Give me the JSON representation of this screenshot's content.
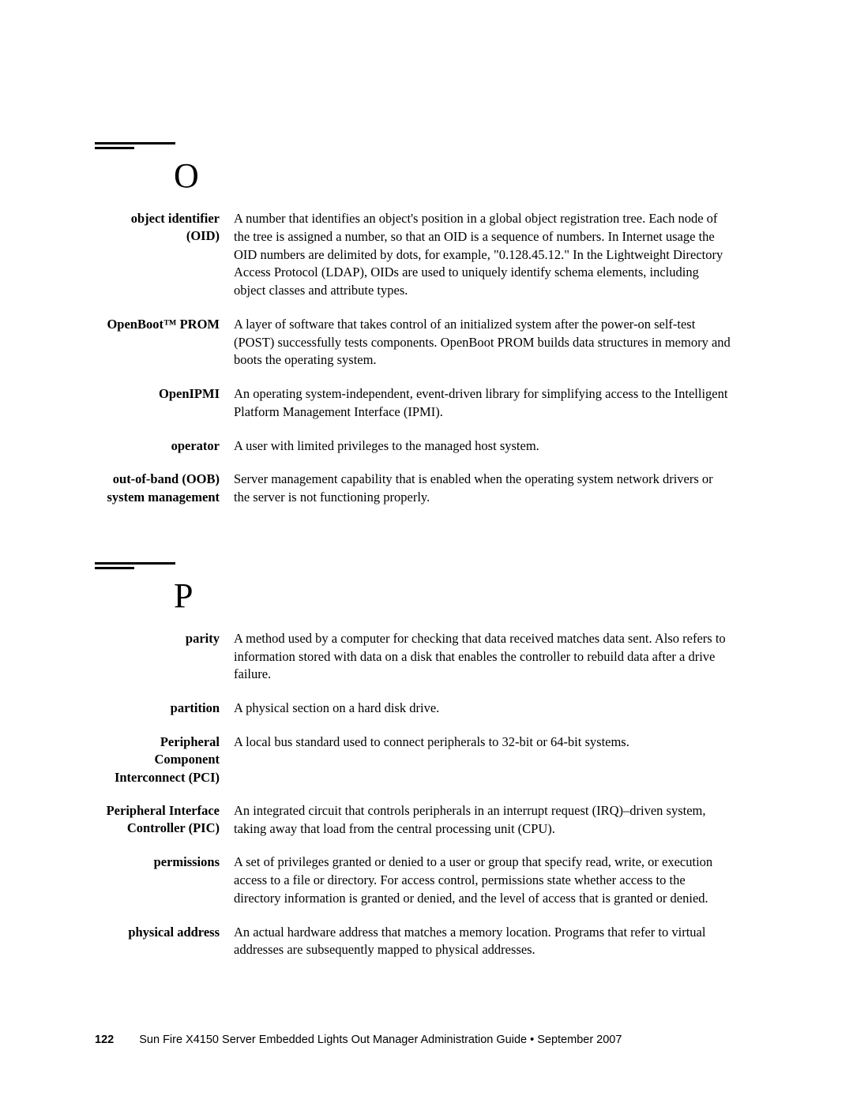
{
  "sections": {
    "O": {
      "letter": "O",
      "entries": {
        "oid": {
          "term1": "object identifier",
          "term2": "(OID)",
          "def": "A number that identifies an object's position in a global object registration tree. Each node of the tree is assigned a number, so that an OID is a sequence of numbers. In Internet usage the OID numbers are delimited by dots, for example, \"0.128.45.12.\" In the Lightweight Directory Access Protocol (LDAP), OIDs are used to uniquely identify schema elements, including object classes and attribute types."
        },
        "openboot": {
          "term": "OpenBoot™ PROM",
          "def": "A layer of software that takes control of an initialized system after the power-on self-test (POST) successfully tests components. OpenBoot PROM builds data structures in memory and boots the operating system."
        },
        "openipmi": {
          "term": "OpenIPMI",
          "def": "An operating system-independent, event-driven library for simplifying access to the Intelligent Platform Management Interface (IPMI)."
        },
        "operator": {
          "term": "operator",
          "def": "A user with limited privileges to the managed host system."
        },
        "oob": {
          "term1": "out-of-band (OOB)",
          "term2": "system management",
          "def": "Server management capability that is enabled when the operating system network drivers or the server is not functioning properly."
        }
      }
    },
    "P": {
      "letter": "P",
      "entries": {
        "parity": {
          "term": "parity",
          "def": "A method used by a computer for checking that data received matches data sent. Also refers to information stored with data on a disk that enables the controller to rebuild data after a drive failure."
        },
        "partition": {
          "term": "partition",
          "def": "A physical section on a hard disk drive."
        },
        "pci": {
          "term1": "Peripheral Component",
          "term2": "Interconnect (PCI)",
          "def": "A local bus standard used to connect peripherals to 32-bit or 64-bit systems."
        },
        "pic": {
          "term1": "Peripheral Interface",
          "term2": "Controller (PIC)",
          "def": "An integrated circuit that controls peripherals in an interrupt request (IRQ)–driven system, taking away that load from the central processing unit (CPU)."
        },
        "permissions": {
          "term": "permissions",
          "def": "A set of privileges granted or denied to a user or group that specify read, write, or execution access to a file or directory. For access control, permissions state whether access to the directory information is granted or denied, and the level of access that is granted or denied."
        },
        "physaddr": {
          "term": "physical address",
          "def": "An actual hardware address that matches a memory location. Programs that refer to virtual addresses are subsequently mapped to physical addresses."
        }
      }
    }
  },
  "footer": {
    "page": "122",
    "text": "Sun Fire X4150 Server Embedded Lights Out Manager Administration Guide • September 2007"
  }
}
